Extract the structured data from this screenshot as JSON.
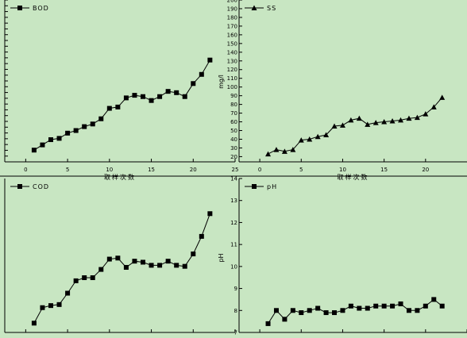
{
  "colors": {
    "background": "#c8e6c2",
    "ink": "#000000"
  },
  "chart_data": [
    {
      "type": "line",
      "marker": "square",
      "series": [
        {
          "name": "BOD",
          "x": [
            1,
            2,
            3,
            4,
            5,
            6,
            7,
            8,
            9,
            10,
            11,
            12,
            13,
            14,
            15,
            16,
            17,
            18,
            19,
            20,
            21,
            22
          ],
          "values": [
            20.5,
            22.5,
            24.5,
            25,
            27,
            28,
            29.5,
            30.5,
            32.5,
            36.5,
            37,
            40.5,
            41.5,
            41,
            39.5,
            41,
            43,
            42.5,
            41,
            46,
            49.5,
            55
          ]
        }
      ],
      "xlim": [
        -2.5,
        25
      ],
      "ylim": [
        16,
        78
      ],
      "xticks": [
        0,
        5,
        10,
        15,
        20,
        25
      ],
      "xtick_labels": [
        "0",
        "5",
        "10",
        "15",
        "20",
        "25"
      ],
      "xlabel": "取样次数",
      "ylabel": "",
      "legend_position": "top-left"
    },
    {
      "type": "line",
      "marker": "triangle",
      "series": [
        {
          "name": "SS",
          "x": [
            1,
            2,
            3,
            4,
            5,
            6,
            7,
            8,
            9,
            10,
            11,
            12,
            13,
            14,
            15,
            16,
            17,
            18,
            19,
            20,
            21,
            22
          ],
          "values": [
            23,
            28,
            26,
            28,
            39,
            40,
            43,
            45,
            55,
            56,
            62,
            64,
            57,
            59,
            60,
            61,
            62,
            64,
            65,
            69,
            77,
            88
          ]
        }
      ],
      "xlim": [
        -2.5,
        25
      ],
      "ylim": [
        14,
        200
      ],
      "xticks": [
        0,
        5,
        10,
        15,
        20
      ],
      "xtick_labels": [
        "0",
        "5",
        "10",
        "15",
        "20"
      ],
      "yticks": [
        20,
        30,
        40,
        50,
        60,
        70,
        80,
        90,
        100,
        110,
        120,
        130,
        140,
        150,
        160,
        170,
        180,
        190,
        200
      ],
      "ytick_labels": [
        "20",
        "30",
        "40",
        "50",
        "60",
        "70",
        "80",
        "90",
        "100",
        "110",
        "120",
        "130",
        "140",
        "150",
        "160",
        "170",
        "180",
        "190",
        "200"
      ],
      "xlabel": "取样次数",
      "ylabel": "mg/l",
      "legend_position": "top-left"
    },
    {
      "type": "line",
      "marker": "square",
      "series": [
        {
          "name": "COD",
          "x": [
            1,
            2,
            3,
            4,
            5,
            6,
            7,
            8,
            9,
            10,
            11,
            12,
            13,
            14,
            15,
            16,
            17,
            18,
            19,
            20,
            21,
            22
          ],
          "values": [
            85,
            100,
            102,
            103,
            114,
            126,
            129,
            129,
            137,
            147,
            148,
            139,
            145,
            144,
            141,
            141,
            145,
            141,
            140,
            152,
            169,
            191
          ]
        }
      ],
      "xlim": [
        -2.5,
        25
      ],
      "ylim": [
        76,
        225
      ],
      "xlabel": "",
      "ylabel": "",
      "legend_position": "top-left"
    },
    {
      "type": "line",
      "marker": "square",
      "series": [
        {
          "name": "pH",
          "x": [
            1,
            2,
            3,
            4,
            5,
            6,
            7,
            8,
            9,
            10,
            11,
            12,
            13,
            14,
            15,
            16,
            17,
            18,
            19,
            20,
            21,
            22
          ],
          "values": [
            7.4,
            8.0,
            7.6,
            8.0,
            7.9,
            8.0,
            8.1,
            7.9,
            7.9,
            8.0,
            8.2,
            8.1,
            8.1,
            8.2,
            8.2,
            8.2,
            8.3,
            8.0,
            8.0,
            8.2,
            8.5,
            8.2
          ]
        }
      ],
      "xlim": [
        -2.5,
        25
      ],
      "ylim": [
        7,
        14
      ],
      "yticks": [
        7,
        8,
        9,
        10,
        11,
        12,
        13,
        14
      ],
      "ytick_labels": [
        "7",
        "8",
        "9",
        "10",
        "11",
        "12",
        "13",
        "14"
      ],
      "xlabel": "",
      "ylabel": "pH",
      "legend_position": "top-left"
    }
  ]
}
